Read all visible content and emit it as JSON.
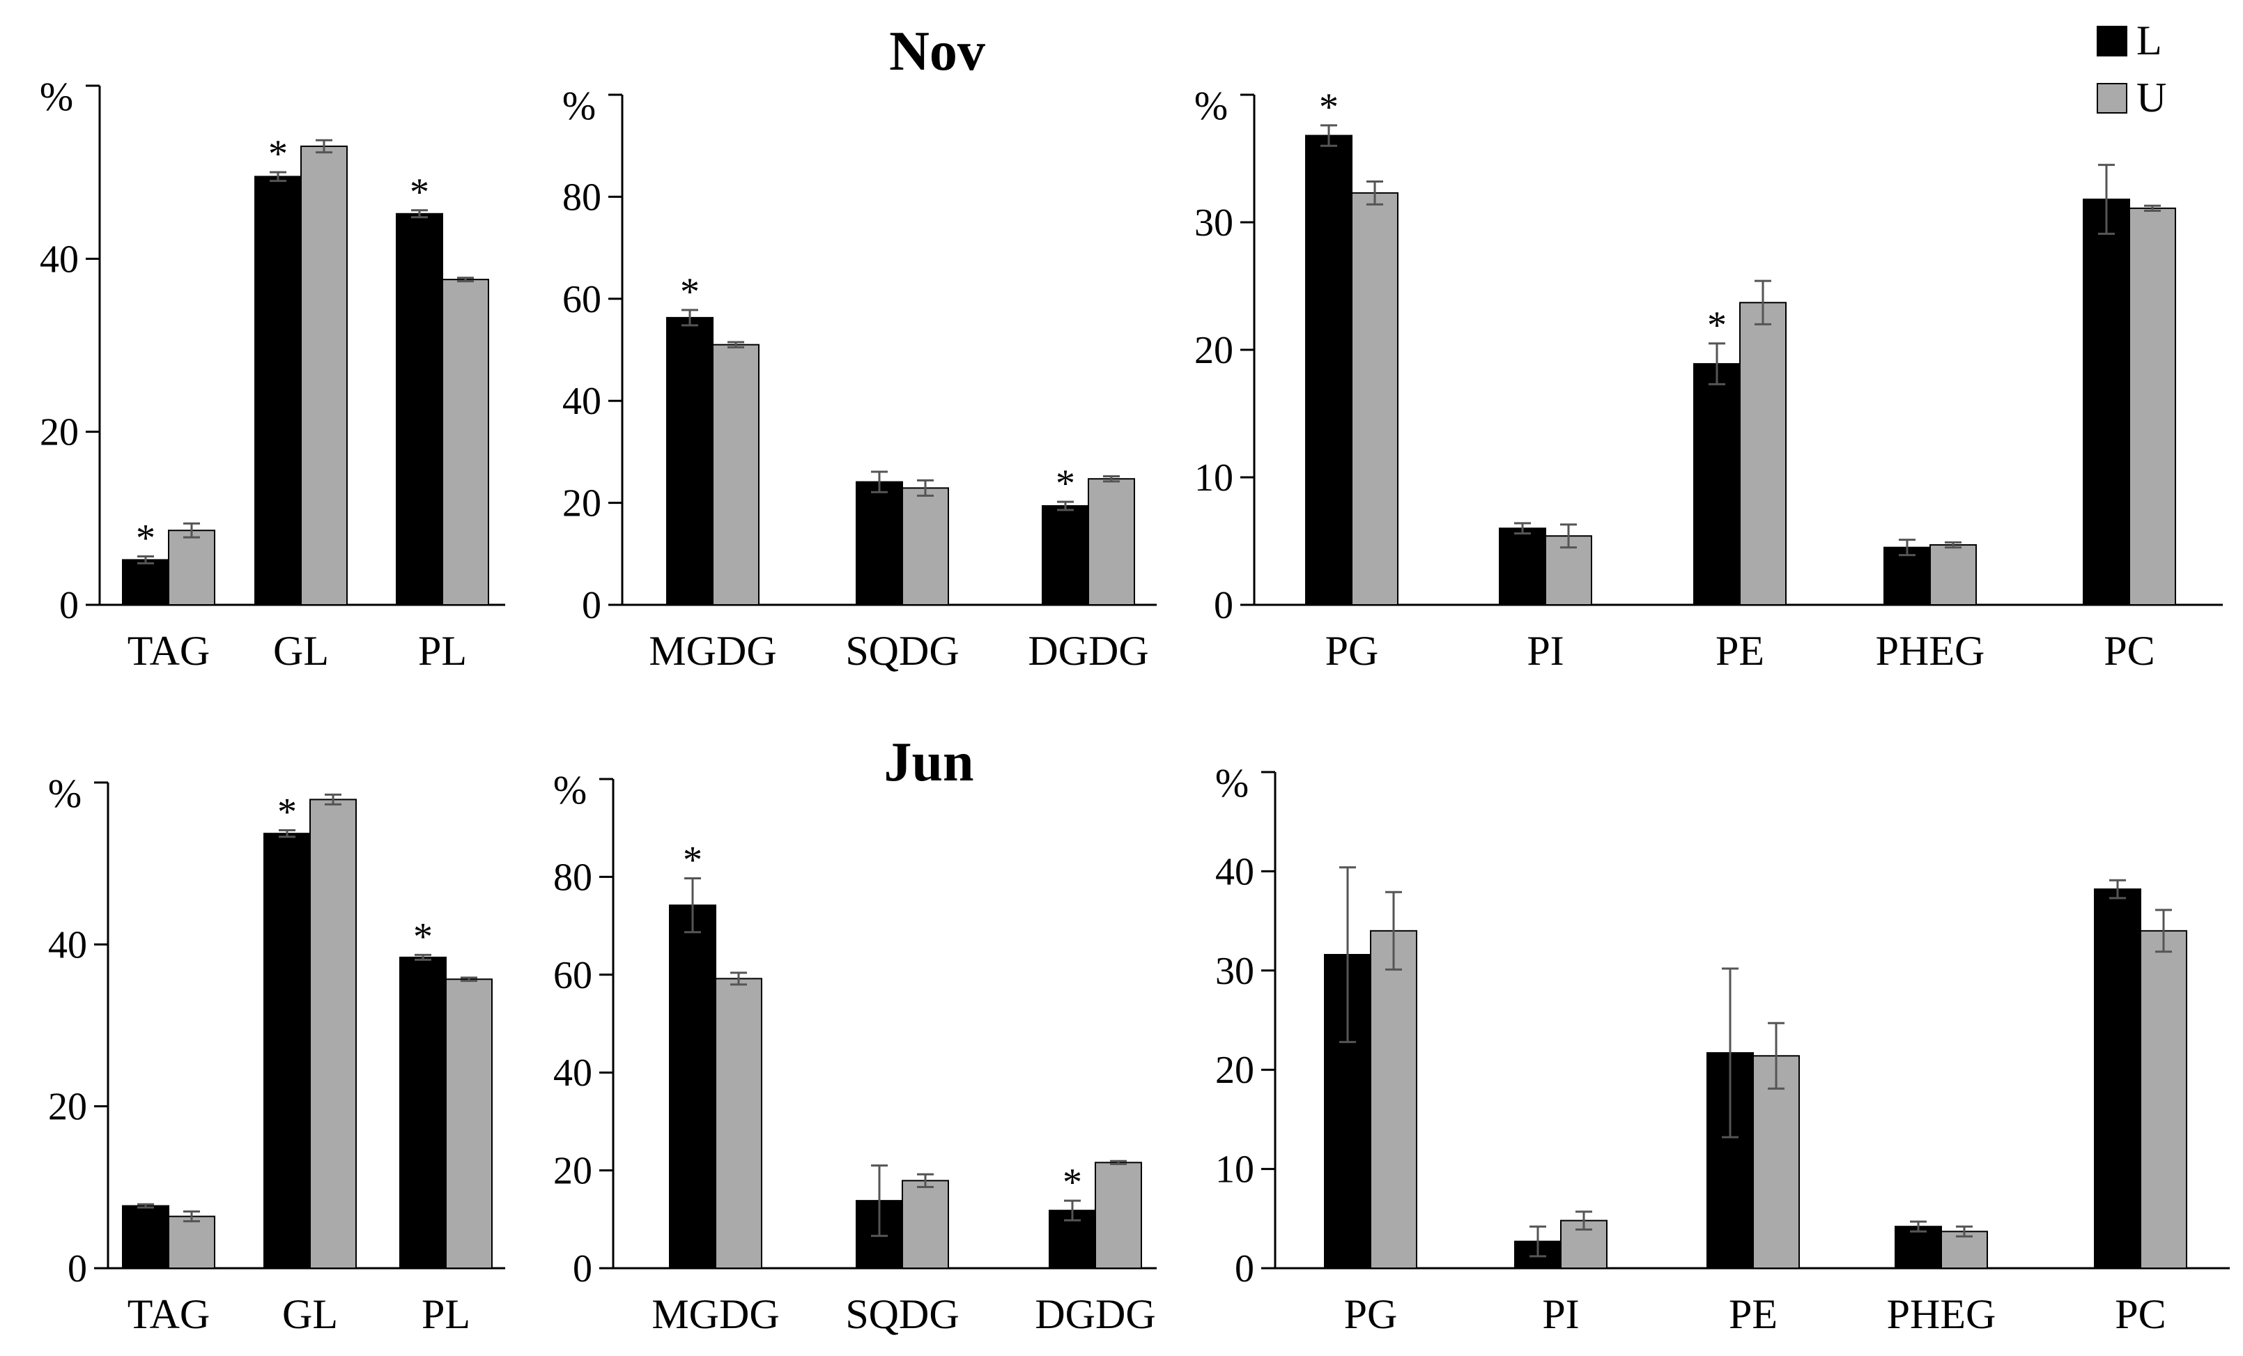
{
  "legend": [
    {
      "label": "L",
      "color": "#000000"
    },
    {
      "label": "U",
      "color": "#aaaaaa"
    }
  ],
  "chart_data": [
    {
      "type": "bar",
      "panel": "nov-total",
      "title": "",
      "ylabel": "%",
      "ylim": [
        0,
        60
      ],
      "yticks": [
        0,
        20,
        40
      ],
      "categories": [
        "TAG",
        "GL",
        "PL"
      ],
      "series": [
        {
          "name": "L",
          "values": [
            5.2,
            49.5,
            45.2
          ],
          "errors": [
            0.4,
            0.5,
            0.4
          ],
          "sig": [
            true,
            true,
            true
          ]
        },
        {
          "name": "U",
          "values": [
            8.6,
            53.0,
            37.6
          ],
          "errors": [
            0.8,
            0.7,
            0.2
          ],
          "sig": [
            false,
            false,
            false
          ]
        }
      ]
    },
    {
      "type": "bar",
      "panel": "nov-gl",
      "title": "Nov",
      "ylabel": "%",
      "ylim": [
        0,
        100
      ],
      "yticks": [
        0,
        20,
        40,
        60,
        80
      ],
      "categories": [
        "MGDG",
        "SQDG",
        "DGDG"
      ],
      "series": [
        {
          "name": "L",
          "values": [
            56.3,
            24.1,
            19.4
          ],
          "errors": [
            1.5,
            2.0,
            0.8
          ],
          "sig": [
            true,
            false,
            true
          ]
        },
        {
          "name": "U",
          "values": [
            51.0,
            22.9,
            24.7
          ],
          "errors": [
            0.5,
            1.5,
            0.5
          ],
          "sig": [
            false,
            false,
            false
          ]
        }
      ]
    },
    {
      "type": "bar",
      "panel": "nov-pl",
      "title": "",
      "ylabel": "%",
      "ylim": [
        0,
        40
      ],
      "yticks": [
        0,
        10,
        20,
        30
      ],
      "categories": [
        "PG",
        "PI",
        "PE",
        "PHEG",
        "PC"
      ],
      "series": [
        {
          "name": "L",
          "values": [
            36.8,
            6.0,
            18.9,
            4.5,
            31.8
          ],
          "errors": [
            0.8,
            0.4,
            1.6,
            0.6,
            2.7
          ],
          "sig": [
            true,
            false,
            true,
            false,
            false
          ]
        },
        {
          "name": "U",
          "values": [
            32.3,
            5.4,
            23.7,
            4.7,
            31.1
          ],
          "errors": [
            0.9,
            0.9,
            1.7,
            0.2,
            0.2
          ],
          "sig": [
            false,
            false,
            false,
            false,
            false
          ]
        }
      ]
    },
    {
      "type": "bar",
      "panel": "jun-total",
      "title": "",
      "ylabel": "%",
      "ylim": [
        0,
        60
      ],
      "yticks": [
        0,
        20,
        40
      ],
      "categories": [
        "TAG",
        "GL",
        "PL"
      ],
      "series": [
        {
          "name": "L",
          "values": [
            7.7,
            53.7,
            38.4
          ],
          "errors": [
            0.2,
            0.4,
            0.3
          ],
          "sig": [
            false,
            true,
            true
          ]
        },
        {
          "name": "U",
          "values": [
            6.4,
            57.9,
            35.7
          ],
          "errors": [
            0.6,
            0.6,
            0.2
          ],
          "sig": [
            false,
            false,
            false
          ]
        }
      ]
    },
    {
      "type": "bar",
      "panel": "jun-gl",
      "title": "Jun",
      "ylabel": "%",
      "ylim": [
        0,
        100
      ],
      "yticks": [
        0,
        20,
        40,
        60,
        80
      ],
      "categories": [
        "MGDG",
        "SQDG",
        "DGDG"
      ],
      "series": [
        {
          "name": "L",
          "values": [
            74.2,
            13.8,
            11.8
          ],
          "errors": [
            5.5,
            7.2,
            2.0
          ],
          "sig": [
            true,
            false,
            true
          ]
        },
        {
          "name": "U",
          "values": [
            59.2,
            17.9,
            21.6
          ],
          "errors": [
            1.2,
            1.3,
            0.3
          ],
          "sig": [
            false,
            false,
            false
          ]
        }
      ]
    },
    {
      "type": "bar",
      "panel": "jun-pl",
      "title": "",
      "ylabel": "%",
      "ylim": [
        0,
        50
      ],
      "yticks": [
        0,
        10,
        20,
        30,
        40
      ],
      "categories": [
        "PG",
        "PI",
        "PE",
        "PHEG",
        "PC"
      ],
      "series": [
        {
          "name": "L",
          "values": [
            31.6,
            2.7,
            21.7,
            4.2,
            38.2
          ],
          "errors": [
            8.8,
            1.5,
            8.5,
            0.5,
            0.9
          ],
          "sig": [
            false,
            false,
            false,
            false,
            false
          ]
        },
        {
          "name": "U",
          "values": [
            34.0,
            4.8,
            21.4,
            3.7,
            34.0
          ],
          "errors": [
            3.9,
            0.9,
            3.3,
            0.5,
            2.1
          ],
          "sig": [
            false,
            false,
            false,
            false,
            false
          ]
        }
      ]
    }
  ]
}
